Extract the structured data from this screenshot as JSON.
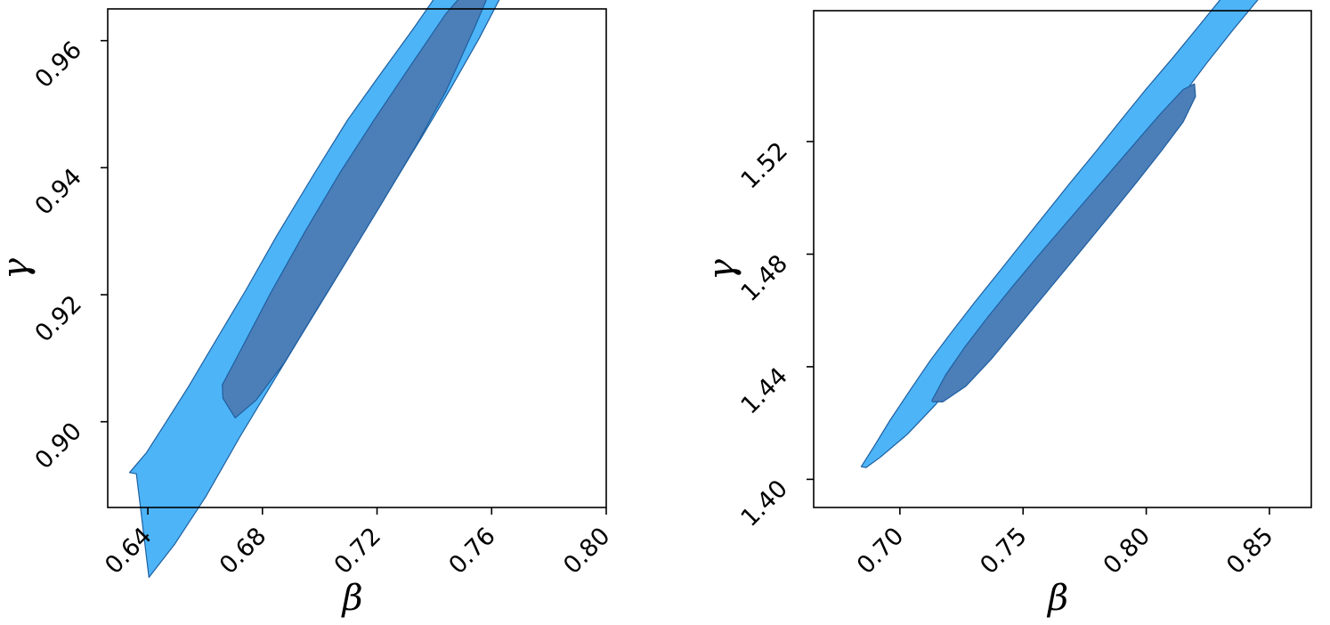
{
  "colors": {
    "outer_region": "#4db4f7",
    "inner_region": "#4c7eb8",
    "region_edge": "#1f5fa0"
  },
  "chart_data": [
    {
      "type": "contour",
      "title": "",
      "xlabel": "β",
      "ylabel": "γ",
      "xlim": [
        0.626,
        0.8
      ],
      "ylim": [
        0.8865,
        0.965
      ],
      "x_ticks": [
        "0.64",
        "0.68",
        "0.72",
        "0.76",
        "0.80"
      ],
      "y_ticks": [
        "0.90",
        "0.92",
        "0.94",
        "0.96"
      ],
      "grid": false,
      "legend": "none",
      "regions": [
        {
          "level": "outer",
          "color": "#4db4f7",
          "points": [
            [
              0.6336,
              0.892
            ],
            [
              0.6395,
              0.8951
            ],
            [
              0.6453,
              0.8992
            ],
            [
              0.6543,
              0.9056
            ],
            [
              0.664,
              0.913
            ],
            [
              0.6742,
              0.9207
            ],
            [
              0.685,
              0.9293
            ],
            [
              0.698,
              0.939
            ],
            [
              0.7097,
              0.9475
            ],
            [
              0.7208,
              0.9545
            ],
            [
              0.7324,
              0.9617
            ],
            [
              0.7436,
              0.969
            ],
            [
              0.7532,
              0.9753
            ],
            [
              0.7627,
              0.9819
            ],
            [
              0.7707,
              0.9874
            ],
            [
              0.7758,
              0.991
            ],
            [
              0.781,
              0.995
            ],
            [
              0.788,
              0.9978
            ],
            [
              0.7911,
              0.999
            ],
            [
              0.7907,
              0.9962
            ],
            [
              0.7891,
              0.991
            ],
            [
              0.7826,
              0.984
            ],
            [
              0.7734,
              0.976
            ],
            [
              0.7641,
              0.9677
            ],
            [
              0.7557,
              0.9604
            ],
            [
              0.746,
              0.9527
            ],
            [
              0.7356,
              0.9448
            ],
            [
              0.7255,
              0.9373
            ],
            [
              0.7146,
              0.9292
            ],
            [
              0.704,
              0.9213
            ],
            [
              0.693,
              0.9132
            ],
            [
              0.6828,
              0.9056
            ],
            [
              0.672,
              0.8975
            ],
            [
              0.6602,
              0.8882
            ],
            [
              0.6495,
              0.8808
            ],
            [
              0.6404,
              0.8755
            ],
            [
              0.636,
              0.8918
            ]
          ]
        },
        {
          "level": "inner",
          "color": "#4c7eb8",
          "points": [
            [
              0.666,
              0.9058
            ],
            [
              0.672,
              0.9109
            ],
            [
              0.6829,
              0.9203
            ],
            [
              0.6952,
              0.9302
            ],
            [
              0.7072,
              0.9393
            ],
            [
              0.7191,
              0.9476
            ],
            [
              0.7313,
              0.9558
            ],
            [
              0.7438,
              0.9641
            ],
            [
              0.756,
              0.9705
            ],
            [
              0.7596,
              0.9716
            ],
            [
              0.7596,
              0.968
            ],
            [
              0.754,
              0.962
            ],
            [
              0.744,
              0.952
            ],
            [
              0.733,
              0.943
            ],
            [
              0.7218,
              0.9345
            ],
            [
              0.7106,
              0.9262
            ],
            [
              0.699,
              0.9177
            ],
            [
              0.688,
              0.9095
            ],
            [
              0.6778,
              0.9034
            ],
            [
              0.6705,
              0.9006
            ],
            [
              0.6662,
              0.9037
            ]
          ]
        }
      ]
    },
    {
      "type": "contour",
      "title": "",
      "xlabel": "β",
      "ylabel": "γ",
      "xlim": [
        0.665,
        0.867
      ],
      "ylim": [
        1.39,
        1.5665
      ],
      "x_ticks": [
        "0.70",
        "0.75",
        "0.80",
        "0.85"
      ],
      "y_ticks": [
        "1.40",
        "1.44",
        "1.48",
        "1.52"
      ],
      "grid": false,
      "legend": "none",
      "regions": [
        {
          "level": "outer",
          "color": "#4db4f7",
          "points": [
            [
              0.6843,
              1.4045
            ],
            [
              0.6895,
              1.4117
            ],
            [
              0.696,
              1.421
            ],
            [
              0.7042,
              1.4318
            ],
            [
              0.7125,
              1.4424
            ],
            [
              0.7216,
              1.453
            ],
            [
              0.7303,
              1.4628
            ],
            [
              0.7401,
              1.4735
            ],
            [
              0.7497,
              1.4841
            ],
            [
              0.7594,
              1.4947
            ],
            [
              0.769,
              1.5052
            ],
            [
              0.7794,
              1.5163
            ],
            [
              0.7897,
              1.5276
            ],
            [
              0.8,
              1.5387
            ],
            [
              0.811,
              1.55
            ],
            [
              0.8213,
              1.561
            ],
            [
              0.831,
              1.5715
            ],
            [
              0.8395,
              1.581
            ],
            [
              0.8474,
              1.5885
            ],
            [
              0.8541,
              1.5927
            ],
            [
              0.856,
              1.586
            ],
            [
              0.853,
              1.579
            ],
            [
              0.845,
              1.57
            ],
            [
              0.8353,
              1.5598
            ],
            [
              0.825,
              1.5484
            ],
            [
              0.8152,
              1.537
            ],
            [
              0.805,
              1.5256
            ],
            [
              0.7954,
              1.5144
            ],
            [
              0.786,
              1.5032
            ],
            [
              0.776,
              1.492
            ],
            [
              0.766,
              1.481
            ],
            [
              0.7562,
              1.4703
            ],
            [
              0.7461,
              1.4594
            ],
            [
              0.7359,
              1.4484
            ],
            [
              0.725,
              1.4373
            ],
            [
              0.7141,
              1.4262
            ],
            [
              0.703,
              1.416
            ],
            [
              0.692,
              1.4078
            ],
            [
              0.6863,
              1.4042
            ]
          ]
        },
        {
          "level": "inner",
          "color": "#4c7eb8",
          "points": [
            [
              0.713,
              1.428
            ],
            [
              0.7185,
              1.437
            ],
            [
              0.7265,
              1.4472
            ],
            [
              0.736,
              1.458
            ],
            [
              0.7458,
              1.4686
            ],
            [
              0.7557,
              1.479
            ],
            [
              0.7658,
              1.4893
            ],
            [
              0.7759,
              1.4996
            ],
            [
              0.786,
              1.5098
            ],
            [
              0.796,
              1.52
            ],
            [
              0.806,
              1.5301
            ],
            [
              0.815,
              1.5385
            ],
            [
              0.8196,
              1.5405
            ],
            [
              0.82,
              1.536
            ],
            [
              0.815,
              1.527
            ],
            [
              0.8062,
              1.5167
            ],
            [
              0.7966,
              1.5061
            ],
            [
              0.7868,
              1.4955
            ],
            [
              0.777,
              1.485
            ],
            [
              0.767,
              1.4744
            ],
            [
              0.757,
              1.4638
            ],
            [
              0.747,
              1.4532
            ],
            [
              0.737,
              1.4426
            ],
            [
              0.7268,
              1.4331
            ],
            [
              0.7174,
              1.4275
            ],
            [
              0.7132,
              1.4276
            ]
          ]
        }
      ]
    }
  ]
}
